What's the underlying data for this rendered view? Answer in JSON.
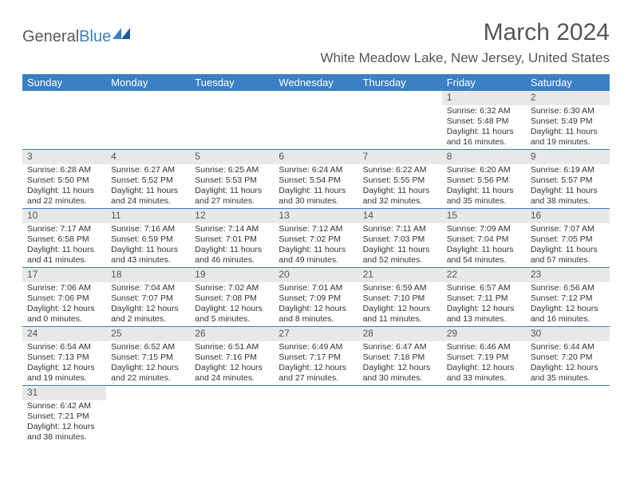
{
  "logo": {
    "part1": "General",
    "part2": "Blue"
  },
  "title": "March 2024",
  "location": "White Meadow Lake, New Jersey, United States",
  "colors": {
    "header_bg": "#3b7fc4",
    "header_text": "#ffffff",
    "daynum_bg": "#e8e8e8",
    "text": "#333333",
    "rule": "#3b7fc4"
  },
  "weekdays": [
    "Sunday",
    "Monday",
    "Tuesday",
    "Wednesday",
    "Thursday",
    "Friday",
    "Saturday"
  ],
  "weeks": [
    [
      {
        "n": "",
        "sr": "",
        "ss": "",
        "dl": ""
      },
      {
        "n": "",
        "sr": "",
        "ss": "",
        "dl": ""
      },
      {
        "n": "",
        "sr": "",
        "ss": "",
        "dl": ""
      },
      {
        "n": "",
        "sr": "",
        "ss": "",
        "dl": ""
      },
      {
        "n": "",
        "sr": "",
        "ss": "",
        "dl": ""
      },
      {
        "n": "1",
        "sr": "Sunrise: 6:32 AM",
        "ss": "Sunset: 5:48 PM",
        "dl": "Daylight: 11 hours and 16 minutes."
      },
      {
        "n": "2",
        "sr": "Sunrise: 6:30 AM",
        "ss": "Sunset: 5:49 PM",
        "dl": "Daylight: 11 hours and 19 minutes."
      }
    ],
    [
      {
        "n": "3",
        "sr": "Sunrise: 6:28 AM",
        "ss": "Sunset: 5:50 PM",
        "dl": "Daylight: 11 hours and 22 minutes."
      },
      {
        "n": "4",
        "sr": "Sunrise: 6:27 AM",
        "ss": "Sunset: 5:52 PM",
        "dl": "Daylight: 11 hours and 24 minutes."
      },
      {
        "n": "5",
        "sr": "Sunrise: 6:25 AM",
        "ss": "Sunset: 5:53 PM",
        "dl": "Daylight: 11 hours and 27 minutes."
      },
      {
        "n": "6",
        "sr": "Sunrise: 6:24 AM",
        "ss": "Sunset: 5:54 PM",
        "dl": "Daylight: 11 hours and 30 minutes."
      },
      {
        "n": "7",
        "sr": "Sunrise: 6:22 AM",
        "ss": "Sunset: 5:55 PM",
        "dl": "Daylight: 11 hours and 32 minutes."
      },
      {
        "n": "8",
        "sr": "Sunrise: 6:20 AM",
        "ss": "Sunset: 5:56 PM",
        "dl": "Daylight: 11 hours and 35 minutes."
      },
      {
        "n": "9",
        "sr": "Sunrise: 6:19 AM",
        "ss": "Sunset: 5:57 PM",
        "dl": "Daylight: 11 hours and 38 minutes."
      }
    ],
    [
      {
        "n": "10",
        "sr": "Sunrise: 7:17 AM",
        "ss": "Sunset: 6:58 PM",
        "dl": "Daylight: 11 hours and 41 minutes."
      },
      {
        "n": "11",
        "sr": "Sunrise: 7:16 AM",
        "ss": "Sunset: 6:59 PM",
        "dl": "Daylight: 11 hours and 43 minutes."
      },
      {
        "n": "12",
        "sr": "Sunrise: 7:14 AM",
        "ss": "Sunset: 7:01 PM",
        "dl": "Daylight: 11 hours and 46 minutes."
      },
      {
        "n": "13",
        "sr": "Sunrise: 7:12 AM",
        "ss": "Sunset: 7:02 PM",
        "dl": "Daylight: 11 hours and 49 minutes."
      },
      {
        "n": "14",
        "sr": "Sunrise: 7:11 AM",
        "ss": "Sunset: 7:03 PM",
        "dl": "Daylight: 11 hours and 52 minutes."
      },
      {
        "n": "15",
        "sr": "Sunrise: 7:09 AM",
        "ss": "Sunset: 7:04 PM",
        "dl": "Daylight: 11 hours and 54 minutes."
      },
      {
        "n": "16",
        "sr": "Sunrise: 7:07 AM",
        "ss": "Sunset: 7:05 PM",
        "dl": "Daylight: 11 hours and 57 minutes."
      }
    ],
    [
      {
        "n": "17",
        "sr": "Sunrise: 7:06 AM",
        "ss": "Sunset: 7:06 PM",
        "dl": "Daylight: 12 hours and 0 minutes."
      },
      {
        "n": "18",
        "sr": "Sunrise: 7:04 AM",
        "ss": "Sunset: 7:07 PM",
        "dl": "Daylight: 12 hours and 2 minutes."
      },
      {
        "n": "19",
        "sr": "Sunrise: 7:02 AM",
        "ss": "Sunset: 7:08 PM",
        "dl": "Daylight: 12 hours and 5 minutes."
      },
      {
        "n": "20",
        "sr": "Sunrise: 7:01 AM",
        "ss": "Sunset: 7:09 PM",
        "dl": "Daylight: 12 hours and 8 minutes."
      },
      {
        "n": "21",
        "sr": "Sunrise: 6:59 AM",
        "ss": "Sunset: 7:10 PM",
        "dl": "Daylight: 12 hours and 11 minutes."
      },
      {
        "n": "22",
        "sr": "Sunrise: 6:57 AM",
        "ss": "Sunset: 7:11 PM",
        "dl": "Daylight: 12 hours and 13 minutes."
      },
      {
        "n": "23",
        "sr": "Sunrise: 6:56 AM",
        "ss": "Sunset: 7:12 PM",
        "dl": "Daylight: 12 hours and 16 minutes."
      }
    ],
    [
      {
        "n": "24",
        "sr": "Sunrise: 6:54 AM",
        "ss": "Sunset: 7:13 PM",
        "dl": "Daylight: 12 hours and 19 minutes."
      },
      {
        "n": "25",
        "sr": "Sunrise: 6:52 AM",
        "ss": "Sunset: 7:15 PM",
        "dl": "Daylight: 12 hours and 22 minutes."
      },
      {
        "n": "26",
        "sr": "Sunrise: 6:51 AM",
        "ss": "Sunset: 7:16 PM",
        "dl": "Daylight: 12 hours and 24 minutes."
      },
      {
        "n": "27",
        "sr": "Sunrise: 6:49 AM",
        "ss": "Sunset: 7:17 PM",
        "dl": "Daylight: 12 hours and 27 minutes."
      },
      {
        "n": "28",
        "sr": "Sunrise: 6:47 AM",
        "ss": "Sunset: 7:18 PM",
        "dl": "Daylight: 12 hours and 30 minutes."
      },
      {
        "n": "29",
        "sr": "Sunrise: 6:46 AM",
        "ss": "Sunset: 7:19 PM",
        "dl": "Daylight: 12 hours and 33 minutes."
      },
      {
        "n": "30",
        "sr": "Sunrise: 6:44 AM",
        "ss": "Sunset: 7:20 PM",
        "dl": "Daylight: 12 hours and 35 minutes."
      }
    ],
    [
      {
        "n": "31",
        "sr": "Sunrise: 6:42 AM",
        "ss": "Sunset: 7:21 PM",
        "dl": "Daylight: 12 hours and 38 minutes."
      },
      {
        "n": "",
        "sr": "",
        "ss": "",
        "dl": ""
      },
      {
        "n": "",
        "sr": "",
        "ss": "",
        "dl": ""
      },
      {
        "n": "",
        "sr": "",
        "ss": "",
        "dl": ""
      },
      {
        "n": "",
        "sr": "",
        "ss": "",
        "dl": ""
      },
      {
        "n": "",
        "sr": "",
        "ss": "",
        "dl": ""
      },
      {
        "n": "",
        "sr": "",
        "ss": "",
        "dl": ""
      }
    ]
  ]
}
